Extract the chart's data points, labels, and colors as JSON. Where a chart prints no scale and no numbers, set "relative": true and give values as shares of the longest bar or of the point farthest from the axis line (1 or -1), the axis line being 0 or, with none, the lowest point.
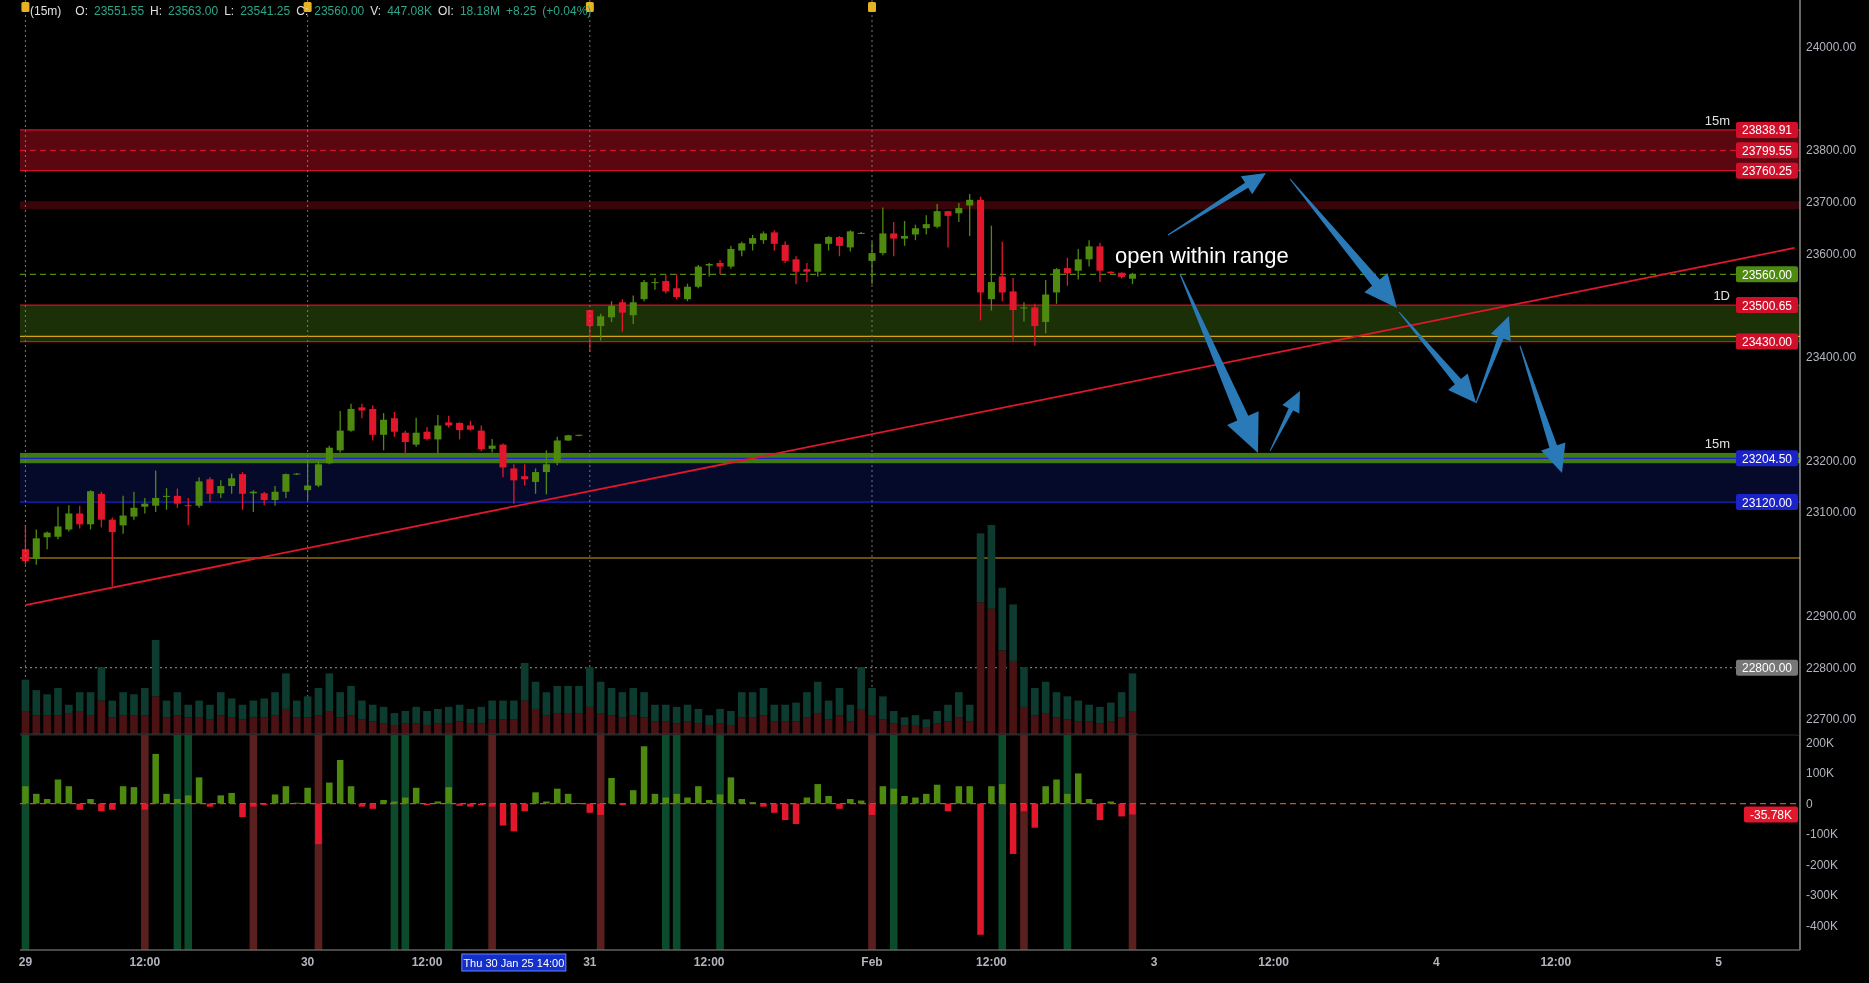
{
  "chart_data": [
    {
      "type": "candlestick",
      "title": "(15m)",
      "subtitle": "O: 23551.55 H: 23563.00 L: 23541.25 C: 23560.00 V: 447.08K OI: 18.18M +8.25 (+0.04%)",
      "categories": [
        null,
        null,
        null,
        null,
        null,
        null,
        null,
        null,
        null,
        null,
        null,
        null,
        null,
        null,
        null,
        null,
        null,
        null,
        null,
        null,
        null,
        null,
        null,
        null,
        null,
        null,
        null,
        null,
        null,
        null,
        null,
        null,
        null,
        null,
        null,
        null,
        null,
        null,
        null,
        null,
        null,
        null,
        null,
        null,
        null,
        null,
        null,
        null,
        null,
        null,
        null,
        null,
        null,
        null,
        null,
        null,
        null,
        null,
        null,
        null,
        null,
        null,
        null,
        null,
        null,
        null,
        null,
        null,
        null,
        null,
        null,
        null,
        null,
        null,
        null,
        null,
        null,
        null,
        null,
        null,
        null,
        null,
        null,
        null,
        null,
        null,
        null,
        null,
        null,
        null,
        null,
        null,
        null,
        null,
        null,
        null,
        null,
        null,
        null,
        null,
        null,
        null,
        null,
        null,
        null,
        null,
        null,
        null,
        null,
        null,
        null,
        null,
        null,
        null,
        null,
        null,
        null,
        null,
        null,
        null,
        null,
        null,
        null,
        null,
        null,
        null,
        null,
        null,
        null,
        null,
        null,
        null,
        null,
        null,
        null,
        null,
        null,
        null,
        null,
        null,
        null,
        null,
        null,
        null,
        null,
        null,
        null,
        null,
        null,
        null,
        null,
        null,
        null,
        null,
        null,
        null,
        null,
        null,
        null,
        null,
        null,
        null,
        null,
        null
      ],
      "ohlc": [
        [
          23029,
          23075,
          22999,
          23006
        ],
        [
          23010,
          23067,
          22999,
          23050
        ],
        [
          23052,
          23063,
          23029,
          23061
        ],
        [
          23053,
          23111,
          23048,
          23073
        ],
        [
          23067,
          23114,
          23063,
          23098
        ],
        [
          23098,
          23113,
          23069,
          23077
        ],
        [
          23077,
          23143,
          23067,
          23141
        ],
        [
          23136,
          23140,
          23071,
          23086
        ],
        [
          23086,
          23090,
          22957,
          23062
        ],
        [
          23075,
          23132,
          23059,
          23094
        ],
        [
          23092,
          23140,
          23086,
          23109
        ],
        [
          23111,
          23128,
          23098,
          23117
        ],
        [
          23113,
          23181,
          23101,
          23128
        ],
        [
          23130,
          23147,
          23105,
          23132
        ],
        [
          23132,
          23146,
          23109,
          23117
        ],
        [
          23114,
          23128,
          23075,
          23113
        ],
        [
          23113,
          23168,
          23109,
          23160
        ],
        [
          23164,
          23168,
          23120,
          23136
        ],
        [
          23137,
          23162,
          23128,
          23151
        ],
        [
          23151,
          23175,
          23136,
          23166
        ],
        [
          23174,
          23178,
          23105,
          23136
        ],
        [
          23137,
          23143,
          23101,
          23140
        ],
        [
          23137,
          23140,
          23114,
          23124
        ],
        [
          23124,
          23151,
          23113,
          23140
        ],
        [
          23140,
          23175,
          23128,
          23174
        ],
        [
          23174,
          23176,
          23173,
          23175
        ],
        [
          23143,
          23200,
          23124,
          23152
        ],
        [
          23152,
          23200,
          23149,
          23193
        ],
        [
          23195,
          23229,
          23193,
          23225
        ],
        [
          23220,
          23296,
          23216,
          23258
        ],
        [
          23258,
          23310,
          23256,
          23300
        ],
        [
          23303,
          23310,
          23282,
          23297
        ],
        [
          23300,
          23307,
          23239,
          23250
        ],
        [
          23250,
          23292,
          23220,
          23279
        ],
        [
          23282,
          23294,
          23246,
          23256
        ],
        [
          23254,
          23258,
          23212,
          23236
        ],
        [
          23231,
          23283,
          23227,
          23254
        ],
        [
          23256,
          23265,
          23239,
          23242
        ],
        [
          23241,
          23288,
          23213,
          23268
        ],
        [
          23274,
          23287,
          23264,
          23268
        ],
        [
          23273,
          23274,
          23241,
          23259
        ],
        [
          23268,
          23277,
          23258,
          23260
        ],
        [
          23258,
          23268,
          23218,
          23222
        ],
        [
          23223,
          23242,
          23216,
          23229
        ],
        [
          23231,
          23233,
          23168,
          23187
        ],
        [
          23185,
          23193,
          23117,
          23162
        ],
        [
          23170,
          23193,
          23152,
          23164
        ],
        [
          23159,
          23185,
          23136,
          23178
        ],
        [
          23178,
          23220,
          23135,
          23193
        ],
        [
          23197,
          23246,
          23191,
          23239
        ],
        [
          23239,
          23250,
          23238,
          23249
        ],
        [
          23248,
          23250,
          23247,
          23250
        ],
        [
          23491,
          23491,
          23410,
          23460
        ],
        [
          23460,
          23484,
          23432,
          23479
        ],
        [
          23477,
          23508,
          23468,
          23499
        ],
        [
          23506,
          23512,
          23449,
          23486
        ],
        [
          23481,
          23519,
          23464,
          23506
        ],
        [
          23512,
          23549,
          23508,
          23545
        ],
        [
          23543,
          23553,
          23530,
          23545
        ],
        [
          23547,
          23560,
          23523,
          23527
        ],
        [
          23533,
          23560,
          23512,
          23516
        ],
        [
          23512,
          23542,
          23508,
          23536
        ],
        [
          23536,
          23578,
          23533,
          23575
        ],
        [
          23577,
          23582,
          23556,
          23580
        ],
        [
          23582,
          23587,
          23560,
          23575
        ],
        [
          23575,
          23615,
          23571,
          23609
        ],
        [
          23606,
          23623,
          23595,
          23620
        ],
        [
          23619,
          23636,
          23606,
          23630
        ],
        [
          23626,
          23643,
          23619,
          23639
        ],
        [
          23641,
          23645,
          23606,
          23619
        ],
        [
          23617,
          23624,
          23582,
          23586
        ],
        [
          23589,
          23595,
          23541,
          23565
        ],
        [
          23570,
          23582,
          23545,
          23565
        ],
        [
          23565,
          23619,
          23556,
          23619
        ],
        [
          23619,
          23634,
          23606,
          23632
        ],
        [
          23632,
          23634,
          23595,
          23615
        ],
        [
          23612,
          23645,
          23604,
          23643
        ],
        [
          23640,
          23642,
          23638,
          23640
        ],
        [
          23586,
          23623,
          23541,
          23601
        ],
        [
          23601,
          23689,
          23597,
          23639
        ],
        [
          23639,
          23661,
          23595,
          23629
        ],
        [
          23629,
          23663,
          23615,
          23634
        ],
        [
          23637,
          23656,
          23626,
          23649
        ],
        [
          23649,
          23674,
          23637,
          23657
        ],
        [
          23652,
          23696,
          23649,
          23682
        ],
        [
          23682,
          23683,
          23612,
          23673
        ],
        [
          23678,
          23698,
          23661,
          23688
        ],
        [
          23693,
          23715,
          23634,
          23704
        ],
        [
          23704,
          23710,
          23471,
          23525
        ],
        [
          23512,
          23654,
          23490,
          23545
        ],
        [
          23556,
          23623,
          23508,
          23525
        ],
        [
          23527,
          23553,
          23431,
          23491
        ],
        [
          23494,
          23506,
          23469,
          23496
        ],
        [
          23496,
          23503,
          23422,
          23460
        ],
        [
          23468,
          23549,
          23446,
          23521
        ],
        [
          23525,
          23572,
          23503,
          23570
        ],
        [
          23572,
          23592,
          23538,
          23562
        ],
        [
          23567,
          23609,
          23550,
          23589
        ],
        [
          23589,
          23626,
          23575,
          23614
        ],
        [
          23614,
          23621,
          23545,
          23567
        ],
        [
          23565,
          23566,
          23560,
          23562
        ],
        [
          23563,
          23564,
          23552,
          23555
        ],
        [
          23551.55,
          23563,
          23541.25,
          23560
        ],
        null,
        null,
        null,
        null,
        null,
        null,
        null,
        null,
        null,
        null,
        null,
        null,
        null,
        null,
        null,
        null,
        null,
        null,
        null,
        null,
        null,
        null,
        null,
        null,
        null,
        null,
        null,
        null,
        null,
        null,
        null,
        null,
        null,
        null,
        null,
        null,
        null,
        null,
        null,
        null,
        null,
        null,
        null,
        null,
        null,
        null,
        null,
        null,
        null,
        null,
        null,
        null,
        null,
        null,
        null,
        null,
        null,
        null,
        null,
        null,
        null
      ],
      "series": [
        {
          "type": "line",
          "values": [
            22921,
            null,
            null,
            null,
            null,
            null,
            null,
            null,
            null,
            null,
            null,
            null,
            null,
            null,
            null,
            null,
            null,
            null,
            null,
            null,
            null,
            null,
            null,
            null,
            null,
            null,
            null,
            null,
            null,
            null,
            null,
            null,
            null,
            null,
            null,
            null,
            null,
            null,
            null,
            null,
            null,
            null,
            null,
            null,
            null,
            null,
            null,
            null,
            null,
            null,
            null,
            null,
            null,
            null,
            null,
            null,
            null,
            null,
            null,
            null,
            null,
            null,
            null,
            null,
            null,
            null,
            null,
            null,
            null,
            null,
            null,
            null,
            null,
            null,
            null,
            null,
            null,
            null,
            null,
            null,
            null,
            null,
            null,
            null,
            null,
            null,
            null,
            null,
            null,
            null,
            null,
            null,
            null,
            null,
            null,
            null,
            null,
            null,
            null,
            null,
            null,
            null,
            null,
            null,
            null,
            null,
            null,
            null,
            null,
            null,
            null,
            null,
            null,
            null,
            null,
            null,
            null,
            null,
            null,
            null,
            null,
            null,
            null,
            null,
            null,
            null,
            null,
            null,
            null,
            null,
            null,
            null,
            null,
            null,
            null,
            null,
            null,
            null,
            null,
            null,
            null,
            null,
            null,
            null,
            null,
            null,
            null,
            null,
            null,
            null,
            null,
            null,
            null,
            null,
            null,
            null,
            null,
            null,
            null,
            null,
            null,
            null,
            null,
            23611
          ],
          "color": "#e0182d"
        }
      ],
      "ylim": [
        22670,
        24090
      ],
      "yticks": [
        {
          "value": 24000,
          "label": "24000.00"
        },
        {
          "value": 23800,
          "label": "23800.00"
        },
        {
          "value": 23700,
          "label": "23700.00"
        },
        {
          "value": 23600,
          "label": "23600.00"
        },
        {
          "value": 23400,
          "label": "23400.00"
        },
        {
          "value": 23200,
          "label": "23200.00"
        },
        {
          "value": 23100,
          "label": "23100.00"
        },
        {
          "value": 22900,
          "label": "22900.00"
        },
        {
          "value": 22800,
          "label": "22800.00"
        },
        {
          "value": 22700,
          "label": "22700.00"
        }
      ],
      "tick_labels": "y",
      "bands": [
        {
          "axis": "y",
          "from": 23760.25,
          "to": 23838.91,
          "label": "15m",
          "color": "#5a0710"
        },
        {
          "axis": "y",
          "from": 23686,
          "to": 23701,
          "color": "#3a0508"
        },
        {
          "axis": "y",
          "from": 23430,
          "to": 23500.65,
          "label": "1D",
          "color": "#1c3008"
        },
        {
          "axis": "y",
          "from": 23120,
          "to": 23195,
          "color": "#050a2a"
        },
        {
          "axis": "y",
          "from": 23195,
          "to": 23215,
          "label": "15m",
          "color": "#3f7a12"
        }
      ],
      "ref_lines": [
        {
          "axis": "y",
          "value": 23838.91,
          "label": "23838.91",
          "color": "#d0102a"
        },
        {
          "axis": "y",
          "value": 23799.55,
          "label": "23799.55",
          "color": "#d0102a",
          "line_style": "dashed"
        },
        {
          "axis": "y",
          "value": 23760.25,
          "label": "23760.25",
          "color": "#d0102a"
        },
        {
          "axis": "y",
          "value": 23560,
          "label": "23560.00",
          "color": "#4f8a10",
          "line_style": "dashed"
        },
        {
          "axis": "y",
          "value": 23500.65,
          "label": "23500.65",
          "color": "#d0102a"
        },
        {
          "axis": "y",
          "value": 23440,
          "color": "#d4a017"
        },
        {
          "axis": "y",
          "value": 23430,
          "label": "23430.00",
          "color": "#d0102a"
        },
        {
          "axis": "y",
          "value": 23204.5,
          "label": "23204.50",
          "color": "#1a22c8"
        },
        {
          "axis": "y",
          "value": 23120,
          "label": "23120.00",
          "color": "#1a22c8"
        },
        {
          "axis": "y",
          "value": 23012,
          "color": "#d4a017"
        },
        {
          "axis": "y",
          "value": 22800,
          "label": "22800.00",
          "color": "#777777",
          "line_style": "dotted"
        }
      ],
      "annotations": [
        "open within range"
      ]
    },
    {
      "type": "bar",
      "relative": true,
      "stacked": true,
      "tick_labels": false,
      "categories": [
        null,
        null,
        null,
        null,
        null,
        null,
        null,
        null,
        null,
        null,
        null,
        null,
        null,
        null,
        null,
        null,
        null,
        null,
        null,
        null,
        null,
        null,
        null,
        null,
        null,
        null,
        null,
        null,
        null,
        null,
        null,
        null,
        null,
        null,
        null,
        null,
        null,
        null,
        null,
        null,
        null,
        null,
        null,
        null,
        null,
        null,
        null,
        null,
        null,
        null,
        null,
        null,
        null,
        null,
        null,
        null,
        null,
        null,
        null,
        null,
        null,
        null,
        null,
        null,
        null,
        null,
        null,
        null,
        null,
        null,
        null,
        null,
        null,
        null,
        null,
        null,
        null,
        null,
        null,
        null,
        null,
        null,
        null,
        null,
        null,
        null,
        null,
        null,
        null,
        null,
        null,
        null,
        null,
        null,
        null,
        null,
        null,
        null,
        null,
        null,
        null,
        null,
        null
      ],
      "series": [
        {
          "color": "#4a1212",
          "values": [
            0.11,
            0.09,
            0.09,
            0.09,
            0.1,
            0.11,
            0.09,
            0.16,
            0.08,
            0.09,
            0.09,
            0.09,
            0.18,
            0.08,
            0.09,
            0.08,
            0.08,
            0.07,
            0.09,
            0.08,
            0.07,
            0.08,
            0.08,
            0.09,
            0.12,
            0.08,
            0.08,
            0.09,
            0.11,
            0.08,
            0.09,
            0.07,
            0.06,
            0.05,
            0.04,
            0.05,
            0.05,
            0.04,
            0.05,
            0.05,
            0.06,
            0.05,
            0.05,
            0.07,
            0.07,
            0.07,
            0.16,
            0.12,
            0.09,
            0.1,
            0.1,
            0.1,
            0.13,
            0.1,
            0.09,
            0.08,
            0.09,
            0.08,
            0.06,
            0.06,
            0.05,
            0.06,
            0.05,
            0.04,
            0.05,
            0.04,
            0.08,
            0.08,
            0.09,
            0.06,
            0.06,
            0.06,
            0.08,
            0.1,
            0.07,
            0.09,
            0.06,
            0.12,
            0.09,
            0.07,
            0.05,
            0.04,
            0.04,
            0.03,
            0.05,
            0.06,
            0.08,
            0.06,
            0.63,
            0.6,
            0.4,
            0.35,
            0.13,
            0.09,
            0.1,
            0.08,
            0.07,
            0.06,
            0.06,
            0.05,
            0.06,
            0.08,
            0.11
          ]
        },
        {
          "color": "#0d3b30",
          "values": [
            0.15,
            0.12,
            0.1,
            0.13,
            0.04,
            0.09,
            0.11,
            0.16,
            0.08,
            0.11,
            0.1,
            0.13,
            0.27,
            0.08,
            0.11,
            0.06,
            0.08,
            0.07,
            0.11,
            0.09,
            0.07,
            0.08,
            0.09,
            0.11,
            0.17,
            0.08,
            0.1,
            0.13,
            0.18,
            0.12,
            0.14,
            0.09,
            0.08,
            0.08,
            0.06,
            0.06,
            0.08,
            0.07,
            0.07,
            0.08,
            0.08,
            0.07,
            0.08,
            0.09,
            0.09,
            0.09,
            0.18,
            0.13,
            0.11,
            0.13,
            0.13,
            0.13,
            0.19,
            0.15,
            0.13,
            0.12,
            0.13,
            0.12,
            0.08,
            0.08,
            0.08,
            0.08,
            0.07,
            0.05,
            0.07,
            0.07,
            0.12,
            0.12,
            0.13,
            0.08,
            0.08,
            0.09,
            0.12,
            0.15,
            0.09,
            0.13,
            0.08,
            0.2,
            0.13,
            0.11,
            0.06,
            0.04,
            0.05,
            0.04,
            0.06,
            0.08,
            0.12,
            0.08,
            0.33,
            0.4,
            0.3,
            0.27,
            0.19,
            0.13,
            0.15,
            0.12,
            0.11,
            0.1,
            0.08,
            0.08,
            0.09,
            0.12,
            0.18
          ]
        }
      ]
    },
    {
      "type": "bar",
      "ylim": [
        -480,
        225
      ],
      "categories": [
        "29",
        null,
        null,
        null,
        null,
        null,
        null,
        null,
        null,
        null,
        null,
        "12:00",
        null,
        null,
        null,
        null,
        null,
        null,
        null,
        null,
        null,
        null,
        null,
        null,
        null,
        null,
        "30",
        null,
        null,
        null,
        null,
        null,
        null,
        null,
        null,
        null,
        null,
        "12:00",
        null,
        null,
        null,
        null,
        null,
        null,
        null,
        null,
        null,
        null,
        null,
        null,
        null,
        null,
        "31",
        null,
        null,
        null,
        null,
        null,
        null,
        null,
        null,
        null,
        null,
        "12:00",
        null,
        null,
        null,
        null,
        null,
        null,
        null,
        null,
        null,
        null,
        null,
        null,
        null,
        null,
        "Feb",
        null,
        null,
        null,
        null,
        null,
        null,
        null,
        null,
        null,
        null,
        "12:00",
        null,
        null,
        null,
        null,
        null,
        null,
        null,
        null,
        null,
        null,
        null,
        null,
        null,
        null,
        "3",
        null,
        null,
        null,
        null,
        null,
        null,
        null,
        null,
        null,
        null,
        "12:00",
        null,
        null,
        null,
        null,
        null,
        null,
        null,
        null,
        null,
        null,
        null,
        null,
        null,
        null,
        "4",
        null,
        null,
        null,
        null,
        null,
        null,
        null,
        null,
        null,
        null,
        "12:00",
        null,
        null,
        null,
        null,
        null,
        null,
        null,
        null,
        null,
        null,
        null,
        null,
        null,
        null,
        "5",
        null,
        null,
        null,
        null,
        null,
        null,
        null
      ],
      "values": [
        57,
        32,
        15,
        79,
        57,
        -20,
        15,
        -25,
        -20,
        57,
        54,
        -20,
        163,
        32,
        15,
        27,
        86,
        -10,
        27,
        35,
        -44,
        -10,
        -5,
        30,
        57,
        3,
        52,
        -133,
        69,
        143,
        57,
        -10,
        -17,
        12,
        7,
        20,
        52,
        -5,
        7,
        54,
        -7,
        -10,
        -5,
        -10,
        -72,
        -91,
        -25,
        37,
        7,
        49,
        32,
        2,
        -30,
        -37,
        84,
        -5,
        44,
        188,
        32,
        20,
        32,
        20,
        57,
        12,
        30,
        86,
        15,
        5,
        -10,
        -30,
        -54,
        -67,
        20,
        64,
        25,
        -17,
        15,
        10,
        -37,
        57,
        49,
        25,
        20,
        32,
        62,
        -25,
        57,
        57,
        -430,
        57,
        64,
        -165,
        -25,
        -79,
        57,
        79,
        32,
        99,
        15,
        -54,
        7,
        -42,
        -35.78,
        null,
        null,
        null,
        null,
        null,
        null,
        null,
        null,
        null,
        null,
        null,
        null,
        null,
        null,
        null,
        null,
        null,
        null,
        null,
        null,
        null,
        null,
        null,
        null,
        null,
        null,
        null,
        null,
        null,
        null,
        null,
        null,
        null,
        null,
        null,
        null,
        null,
        null,
        null,
        null,
        null,
        null,
        null,
        null,
        null,
        null,
        null,
        null,
        null,
        null,
        null,
        null,
        null,
        null,
        null,
        null,
        null,
        null,
        null,
        null,
        null
      ],
      "yticks": [
        {
          "value": 200,
          "label": "200K"
        },
        {
          "value": 100,
          "label": "100K"
        },
        0,
        {
          "value": -100,
          "label": "-100K"
        },
        {
          "value": -200,
          "label": "-200K"
        },
        {
          "value": -300,
          "label": "-300K"
        },
        {
          "value": -400,
          "label": "-400K"
        }
      ],
      "ref_lines": [
        {
          "axis": "y",
          "value": 0,
          "color": "#c0562b",
          "line_style": "dashed"
        }
      ],
      "annotations": [
        "Thu 30 Jan 25 14:00",
        "-35.78K"
      ]
    }
  ]
}
